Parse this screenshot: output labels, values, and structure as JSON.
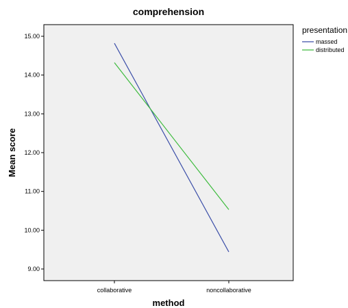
{
  "chart_data": {
    "type": "line",
    "title": "comprehension",
    "xlabel": "method",
    "ylabel": "Mean score",
    "categories": [
      "collaborative",
      "noncollaborative"
    ],
    "ylim": [
      8.7,
      15.3
    ],
    "yticks": [
      9,
      10,
      11,
      12,
      13,
      14,
      15
    ],
    "ytick_labels": [
      "9.00",
      "10.00",
      "11.00",
      "12.00",
      "13.00",
      "14.00",
      "15.00"
    ],
    "grid": false,
    "legend_position": "top-right",
    "legend": {
      "title": "presentation",
      "entries": [
        "massed",
        "distributed"
      ]
    },
    "series": [
      {
        "name": "massed",
        "values": [
          14.82,
          9.44
        ],
        "color": "#3b4ea8"
      },
      {
        "name": "distributed",
        "values": [
          14.32,
          10.53
        ],
        "color": "#3dbb3d"
      }
    ],
    "plot_background": "#f0f0f0"
  }
}
